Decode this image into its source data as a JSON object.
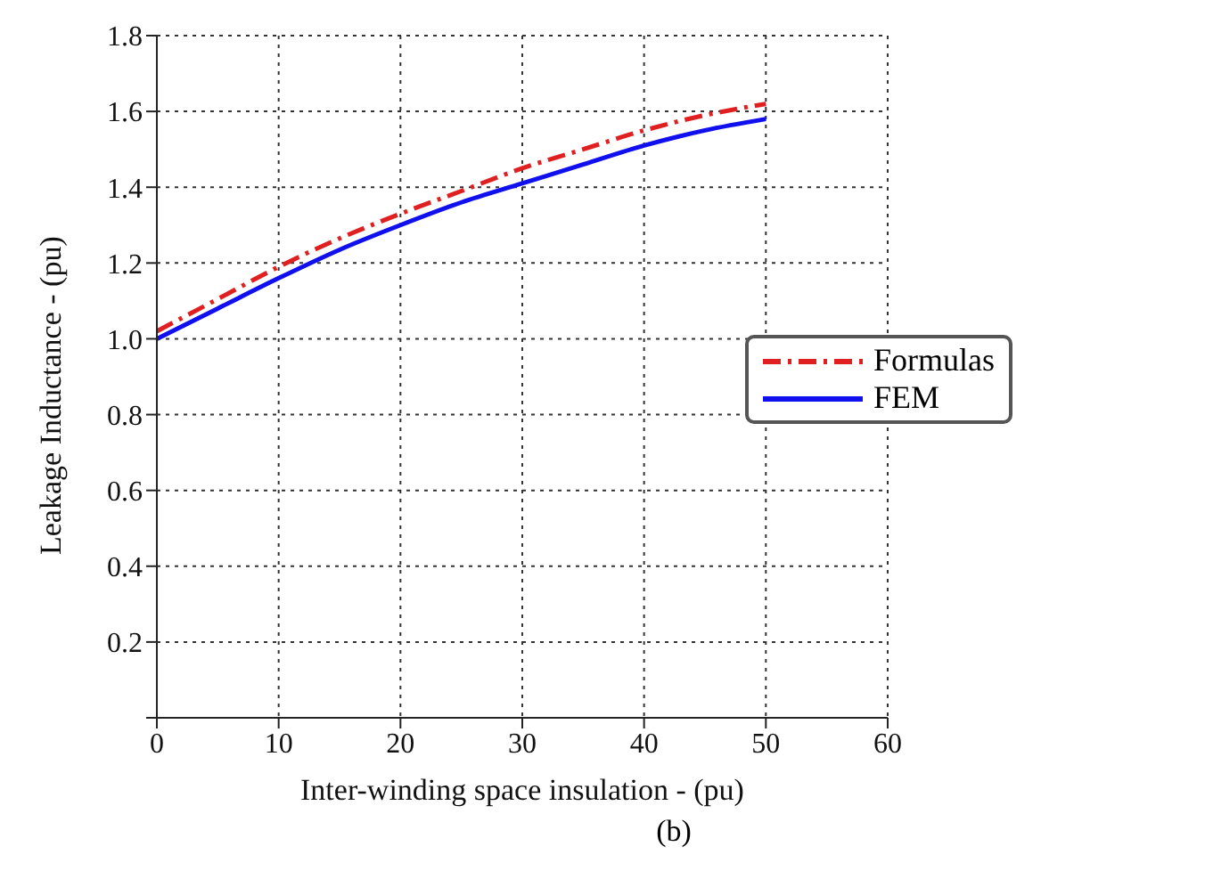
{
  "chart_data": {
    "type": "line",
    "xlabel": "Inter-winding space insulation - (pu)",
    "ylabel": "Leakage Inductance - (pu)",
    "annotations": [
      "(b)"
    ],
    "x": [
      0,
      5,
      10,
      15,
      20,
      25,
      30,
      35,
      40,
      45,
      50
    ],
    "series": [
      {
        "name": "Formulas",
        "color": "#e02020",
        "line_style": "dashdot",
        "values": [
          1.02,
          1.105,
          1.19,
          1.265,
          1.33,
          1.39,
          1.45,
          1.5,
          1.55,
          1.59,
          1.62
        ]
      },
      {
        "name": "FEM",
        "color": "#1010ee",
        "line_style": "solid",
        "values": [
          1.0,
          1.08,
          1.16,
          1.235,
          1.3,
          1.36,
          1.41,
          1.46,
          1.51,
          1.55,
          1.58
        ]
      }
    ],
    "xlim": [
      0,
      60
    ],
    "xticks": [
      0,
      10,
      20,
      30,
      40,
      50,
      60
    ],
    "ylim": [
      0,
      1.8
    ],
    "yticks": [
      {
        "value": 0,
        "label": null
      },
      0.2,
      0.4,
      0.6,
      0.8,
      {
        "value": 1,
        "label": "1.0"
      },
      1.2,
      1.4,
      1.6,
      1.8
    ],
    "grid": true,
    "legend": "right",
    "marker": "none"
  }
}
